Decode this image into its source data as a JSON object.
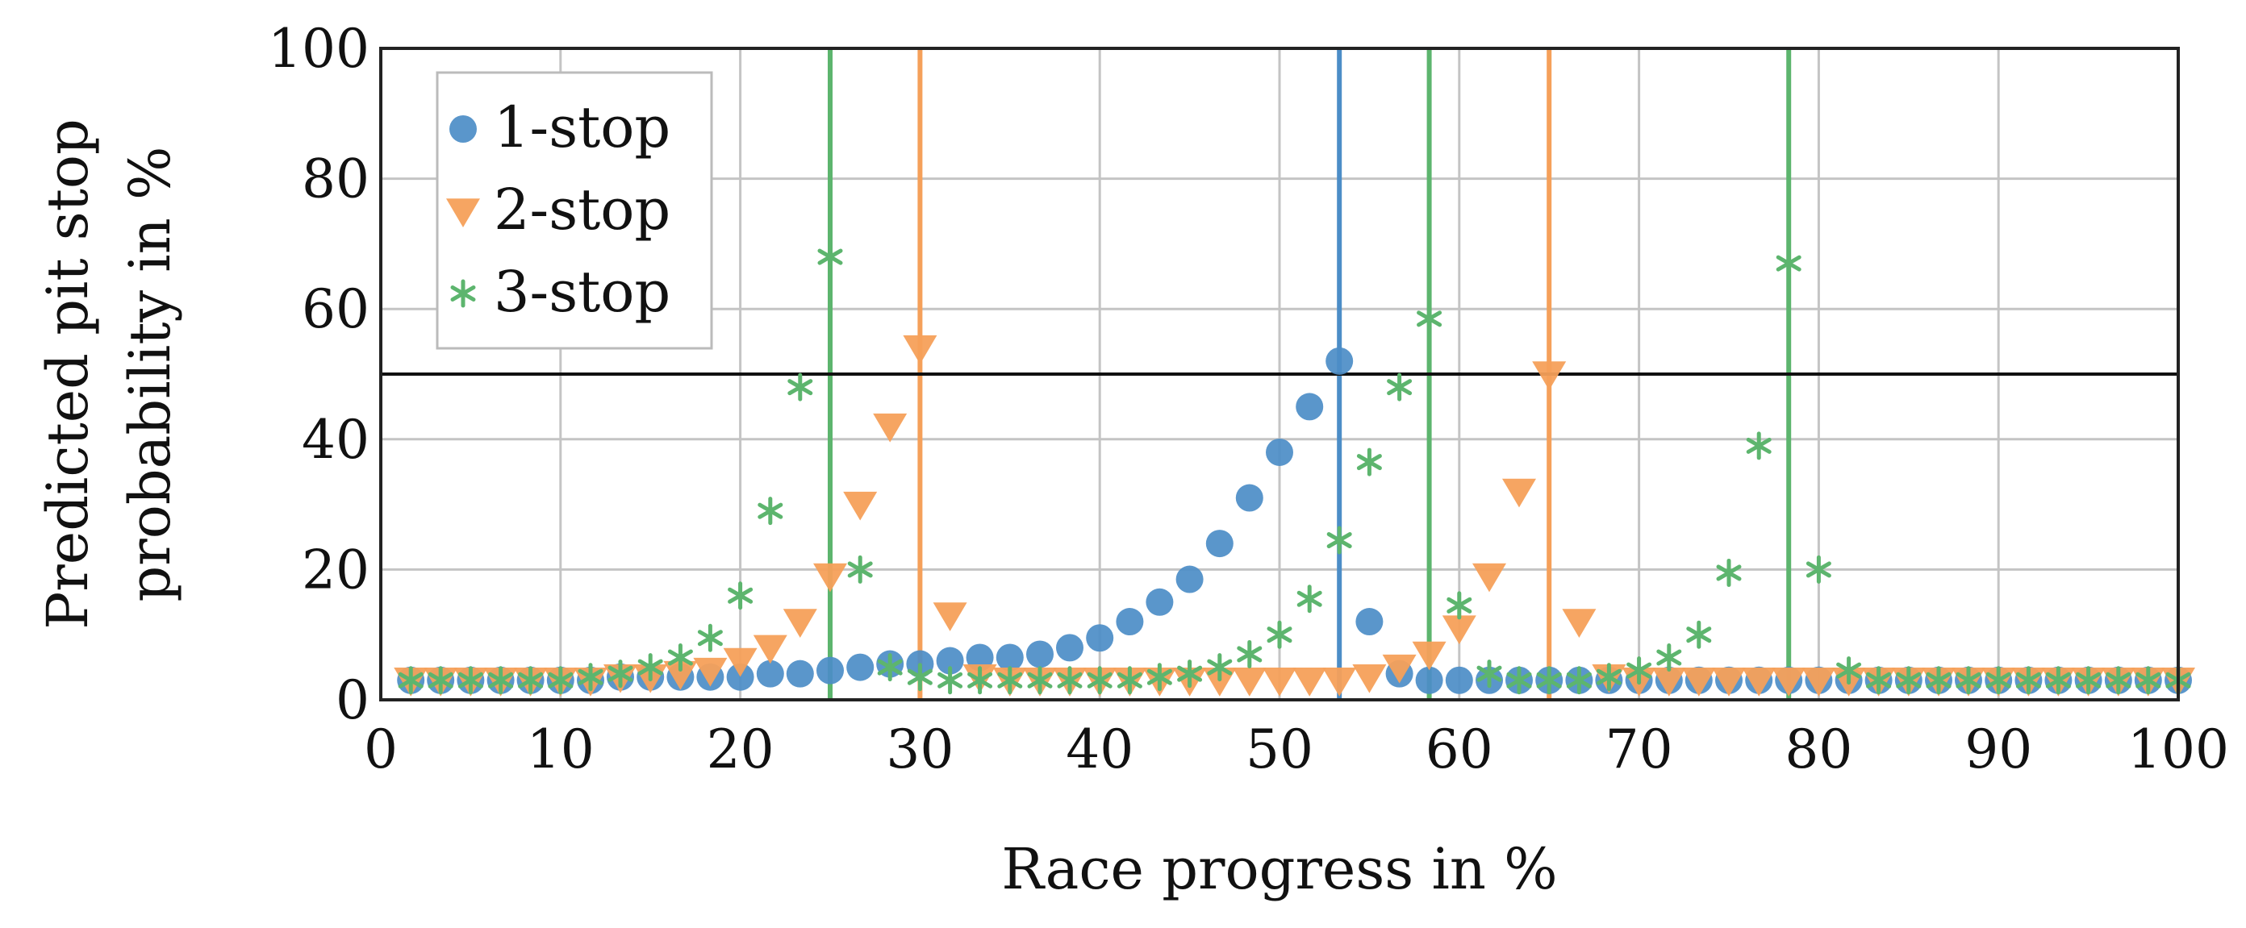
{
  "chart_data": {
    "type": "scatter",
    "xlabel": "Race progress in %",
    "ylabel_lines": [
      "Predicted pit stop",
      "probability in %"
    ],
    "xlim": [
      0,
      100
    ],
    "ylim": [
      0,
      100
    ],
    "xticks": [
      0,
      10,
      20,
      30,
      40,
      50,
      60,
      70,
      80,
      90,
      100
    ],
    "yticks": [
      0,
      20,
      40,
      60,
      80,
      100
    ],
    "xtick_labels": [
      "0",
      "10",
      "20",
      "30",
      "40",
      "50",
      "60",
      "70",
      "80",
      "90",
      "100"
    ],
    "ytick_labels": [
      "0",
      "20",
      "40",
      "60",
      "80",
      "100"
    ],
    "grid": true,
    "threshold": 50,
    "legend_position": "top-left",
    "x": [
      1.67,
      3.33,
      5.0,
      6.67,
      8.33,
      10.0,
      11.67,
      13.33,
      15.0,
      16.67,
      18.33,
      20.0,
      21.67,
      23.33,
      25.0,
      26.67,
      28.33,
      30.0,
      31.67,
      33.33,
      35.0,
      36.67,
      38.33,
      40.0,
      41.67,
      43.33,
      45.0,
      46.67,
      48.33,
      50.0,
      51.67,
      53.33,
      55.0,
      56.67,
      58.33,
      60.0,
      61.67,
      63.33,
      65.0,
      66.67,
      68.33,
      70.0,
      71.67,
      73.33,
      75.0,
      76.67,
      78.33,
      80.0,
      81.67,
      83.33,
      85.0,
      86.67,
      88.33,
      90.0,
      91.67,
      93.33,
      95.0,
      96.67,
      98.33,
      100.0
    ],
    "series": [
      {
        "name": "1-stop",
        "marker": "circle",
        "color": "#4C8DC7",
        "actual_stops": [
          53.33
        ],
        "values": [
          3,
          3,
          3,
          3,
          3,
          3,
          3,
          3.5,
          3.5,
          3.5,
          3.5,
          3.5,
          4,
          4,
          4.5,
          5,
          5.5,
          5.5,
          6,
          6.5,
          6.5,
          7,
          8,
          9.5,
          12,
          15,
          18.5,
          24,
          31,
          38,
          45,
          52,
          12,
          4,
          3,
          3,
          3,
          3,
          3,
          3,
          3,
          3,
          3,
          3,
          3,
          3,
          3,
          3,
          3,
          3,
          3,
          3,
          3,
          3,
          3,
          3,
          3,
          3,
          3,
          3
        ]
      },
      {
        "name": "2-stop",
        "marker": "triangle-down",
        "color": "#F5A05A",
        "actual_stops": [
          30,
          65
        ],
        "values": [
          3,
          3,
          3,
          3,
          3,
          3,
          3,
          3.5,
          3.5,
          4,
          4.5,
          6,
          8,
          12,
          19,
          30,
          42,
          54,
          13,
          3.5,
          3,
          3,
          3,
          3,
          3,
          3,
          3,
          3,
          3,
          3,
          3,
          3,
          3.5,
          5,
          7,
          11,
          19,
          32,
          50,
          12,
          3.5,
          3,
          3,
          3,
          3,
          3,
          3,
          3,
          3,
          3,
          3,
          3,
          3,
          3,
          3,
          3,
          3,
          3,
          3,
          3
        ]
      },
      {
        "name": "3-stop",
        "marker": "asterisk",
        "color": "#5DB56E",
        "actual_stops": [
          25,
          58.33,
          78.33
        ],
        "values": [
          3,
          3,
          3,
          3,
          3,
          3,
          3.5,
          4,
          5,
          6.5,
          9.5,
          16,
          29,
          48,
          68,
          20,
          5,
          3.5,
          3,
          3,
          3,
          3,
          3,
          3,
          3,
          3.5,
          4,
          5,
          7,
          10,
          15.5,
          24.5,
          36.5,
          48,
          58.5,
          14.5,
          4,
          3,
          3,
          3,
          3.5,
          4.5,
          6.5,
          10,
          19.5,
          39,
          67,
          20,
          4.5,
          3,
          3,
          3,
          3,
          3,
          3,
          3,
          3,
          3,
          3,
          3
        ]
      }
    ]
  }
}
